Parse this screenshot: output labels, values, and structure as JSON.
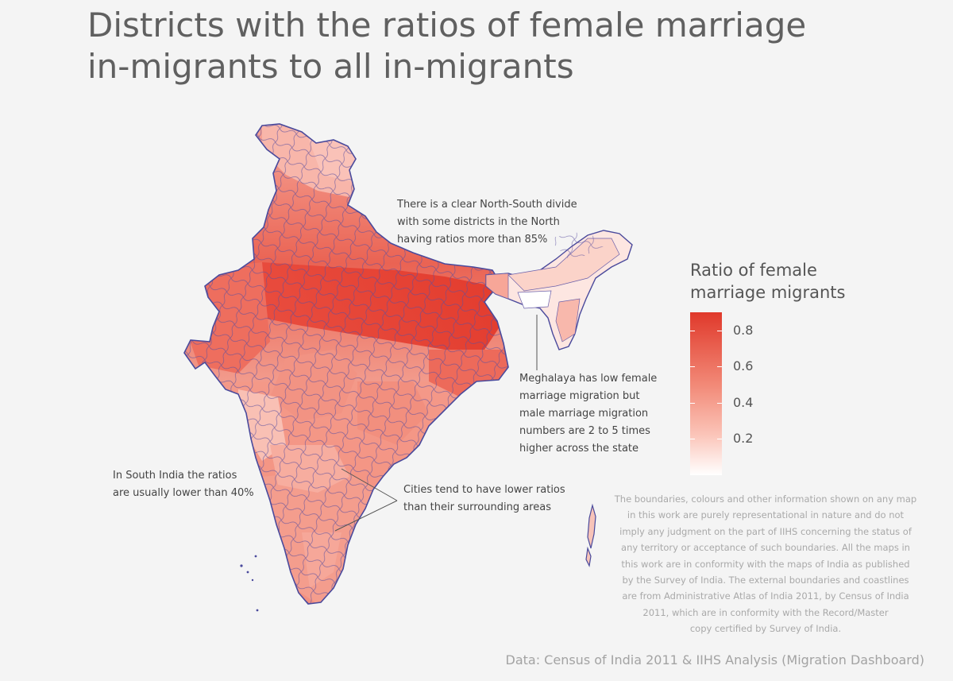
{
  "title": {
    "line1": "Districts with the ratios of female marriage",
    "line2": "in-migrants to all in-migrants"
  },
  "annotations": {
    "north_south": [
      "There is a clear North-South divide",
      "with some districts in the North",
      "having ratios more than 85%"
    ],
    "meghalaya": [
      "Meghalaya has low female",
      "marriage migration but",
      "male marriage migration",
      "numbers are 2 to 5 times",
      "higher across the state"
    ],
    "south": [
      "In South India the ratios",
      "are usually lower than 40%"
    ],
    "cities": [
      "Cities tend to have lower ratios",
      "than their surrounding areas"
    ]
  },
  "legend": {
    "title_line1": "Ratio of female",
    "title_line2": "marriage migrants",
    "ticks": [
      "0.8",
      "0.6",
      "0.4",
      "0.2"
    ],
    "tick_values": [
      0.8,
      0.6,
      0.4,
      0.2
    ],
    "range": [
      0.0,
      0.9
    ],
    "color_low": "#ffffff",
    "color_high": "#e0392b"
  },
  "colors": {
    "background": "#f4f4f4",
    "border": "#4a4a9c",
    "high": "#e0392b",
    "mid": "#f07c6a",
    "low": "#fbd2c8",
    "lowest": "#ffffff"
  },
  "disclaimer": [
    "The boundaries, colours and other information shown on any map",
    "in this work are purely representational in nature and do not",
    "imply any judgment on the part of IIHS concerning the status of",
    "any territory or acceptance of such boundaries. All the maps in",
    "this work are in conformity with the maps of India as published",
    "by the Survey of India. The external boundaries and coastlines",
    "are from Administrative Atlas of India 2011, by Census of India",
    "2011, which are in conformity with the Record/Master",
    "copy certified by Survey of India."
  ],
  "source": "Data: Census of India 2011 & IIHS Analysis (Migration Dashboard)"
}
